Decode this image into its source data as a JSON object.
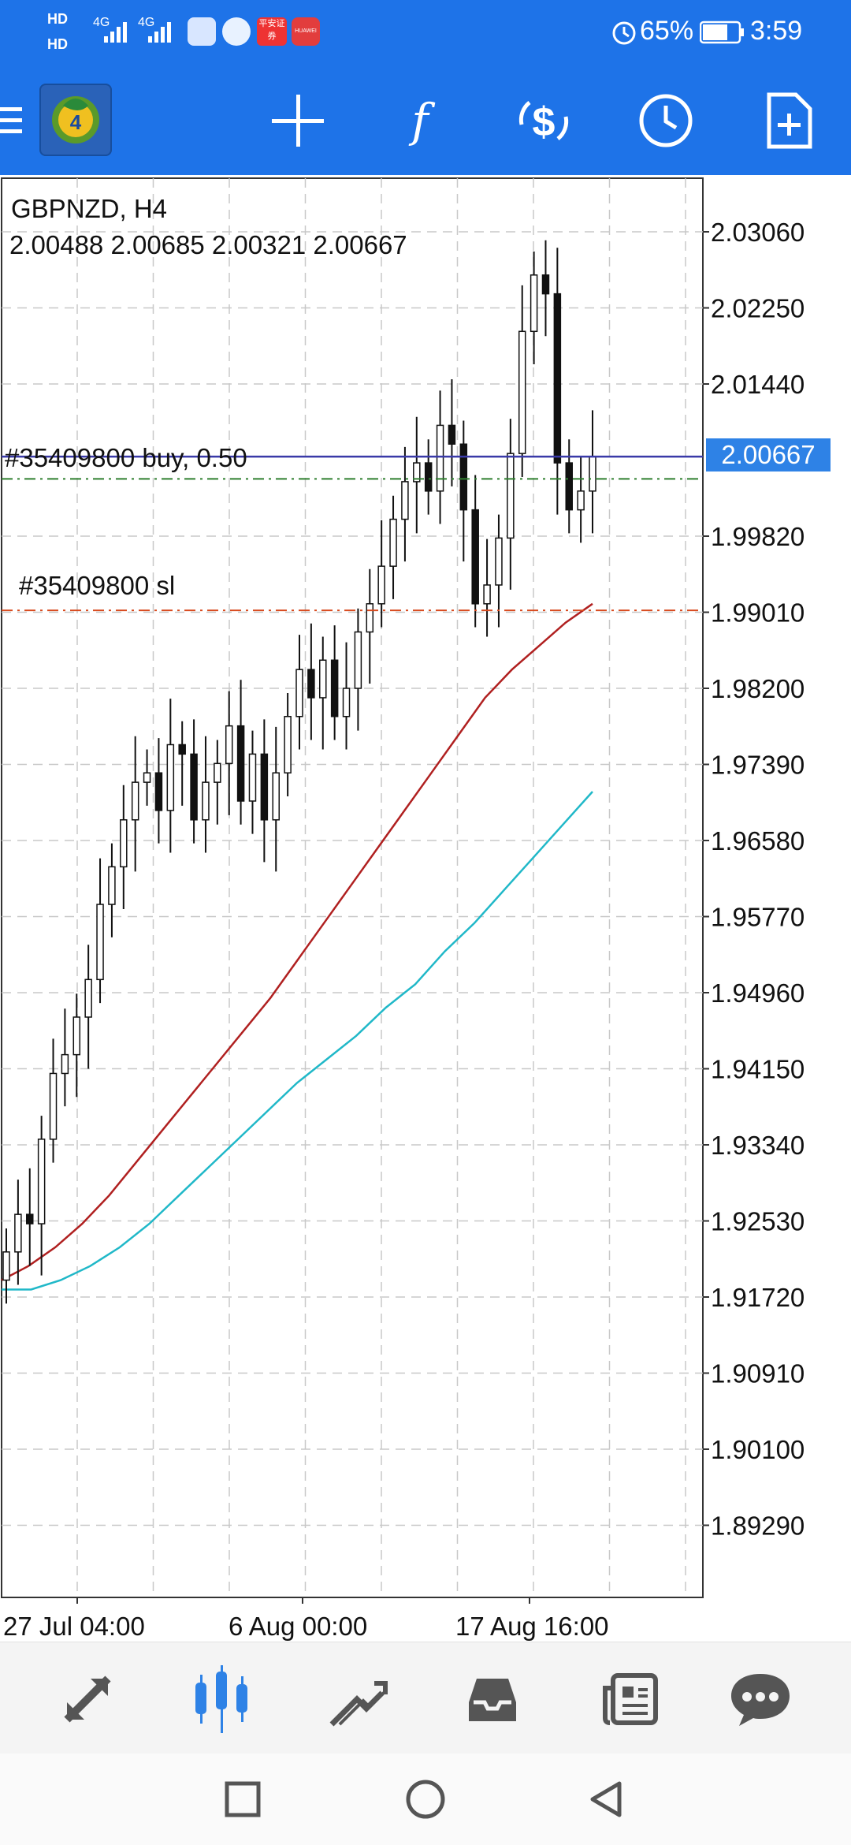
{
  "status_bar": {
    "network_labels": [
      "HD",
      "HD",
      "4G",
      "4G"
    ],
    "battery_percent": "65%",
    "time": "3:59",
    "app_badges": [
      "平安证券",
      "HUAWEI"
    ]
  },
  "toolbar": {
    "app_logo": "mt4-logo-icon",
    "buttons": [
      "menu-icon",
      "crosshair-icon",
      "indicators-icon",
      "trade-icon",
      "timeframe-icon",
      "new-order-icon"
    ]
  },
  "chart": {
    "symbol_timeframe": "GBPNZD, H4",
    "ohlc": "2.00488 2.00685 2.00321 2.00667",
    "current_price": "2.00667",
    "order_label": "#35409800 buy, 0.50",
    "sl_label": "#35409800 sl",
    "colors": {
      "grid": "#c8c8c8",
      "price_line": "#3a3aa8",
      "ask_line": "#2f7f2f",
      "sl_line": "#d84a1e",
      "ma_red": "#b02020",
      "ma_cyan": "#20b8c8",
      "price_badge": "#2e82e6"
    }
  },
  "chart_data": {
    "type": "candlestick",
    "title": "GBPNZD, H4",
    "price_axis_ticks": [
      "2.03060",
      "2.02250",
      "2.01440",
      "2.00667",
      "1.99820",
      "1.99010",
      "1.98200",
      "1.97390",
      "1.96580",
      "1.95770",
      "1.94960",
      "1.94150",
      "1.93340",
      "1.92530",
      "1.91720",
      "1.90910",
      "1.90100",
      "1.89290"
    ],
    "price_axis_values": [
      2.0306,
      2.0225,
      2.0144,
      1.9982,
      1.9901,
      1.982,
      1.9739,
      1.9658,
      1.9577,
      1.9496,
      1.9415,
      1.9334,
      1.9253,
      1.9172,
      1.9091,
      1.901,
      1.8929
    ],
    "time_axis_labels": [
      "27 Jul 04:00",
      "6 Aug 00:00",
      "17 Aug 16:00"
    ],
    "ylim": [
      1.885,
      2.034
    ],
    "lines": {
      "buy_price": 2.00667,
      "ask": 2.0043,
      "stop_loss": 1.9903
    },
    "candles_close": [
      1.922,
      1.926,
      1.925,
      1.934,
      1.941,
      1.943,
      1.947,
      1.951,
      1.959,
      1.963,
      1.968,
      1.972,
      1.973,
      1.969,
      1.976,
      1.975,
      1.968,
      1.972,
      1.974,
      1.978,
      1.97,
      1.975,
      1.968,
      1.973,
      1.979,
      1.984,
      1.981,
      1.985,
      1.979,
      1.982,
      1.988,
      1.991,
      1.995,
      2.0,
      2.004,
      2.006,
      2.003,
      2.01,
      2.008,
      2.001,
      1.991,
      1.993,
      1.998,
      2.007,
      2.02,
      2.026,
      2.024,
      2.006,
      2.001,
      2.003,
      2.0067
    ],
    "ma_red": [
      1.919,
      1.9205,
      1.9225,
      1.925,
      1.928,
      1.9315,
      1.935,
      1.9385,
      1.942,
      1.9455,
      1.949,
      1.953,
      1.957,
      1.961,
      1.965,
      1.969,
      1.973,
      1.977,
      1.981,
      1.984,
      1.9865,
      1.989,
      1.991
    ],
    "ma_cyan": [
      1.918,
      1.918,
      1.919,
      1.9205,
      1.9225,
      1.925,
      1.928,
      1.931,
      1.934,
      1.937,
      1.94,
      1.9425,
      1.945,
      1.948,
      1.9505,
      1.954,
      1.957,
      1.9605,
      1.964,
      1.9675,
      1.971
    ]
  },
  "bottom_tabs": {
    "items": [
      "quotes-icon",
      "chart-icon",
      "trade-icon",
      "history-icon",
      "news-icon",
      "messages-icon"
    ],
    "active": "chart-icon"
  },
  "nav_bar": {
    "items": [
      "recents-icon",
      "home-icon",
      "back-icon"
    ]
  }
}
